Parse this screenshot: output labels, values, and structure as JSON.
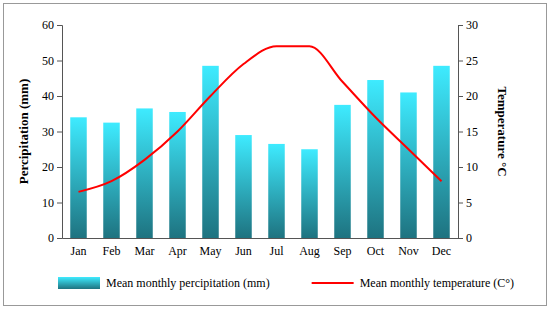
{
  "chart_data": {
    "type": "bar",
    "categories": [
      "Jan",
      "Feb",
      "Mar",
      "Apr",
      "May",
      "Jun",
      "Jul",
      "Aug",
      "Sep",
      "Oct",
      "Nov",
      "Dec"
    ],
    "series": [
      {
        "name": "Mean monthly percipitation (mm)",
        "type": "bar",
        "color": "#2a9fb0",
        "values": [
          34,
          32.5,
          36.5,
          35.5,
          48.5,
          29,
          26.5,
          25,
          37.5,
          44.5,
          41,
          48.5
        ]
      },
      {
        "name": "Mean monthly temperature (C°)",
        "type": "line",
        "axis": "y2",
        "color": "#ff0000",
        "values": [
          6.5,
          8,
          11,
          15,
          20,
          24.5,
          27,
          27,
          22,
          17,
          12.5,
          8
        ]
      }
    ],
    "y_label": "Percipitation (mm)",
    "y2_label": "Temperature °C",
    "ylim": [
      0,
      60
    ],
    "yticks": [
      0,
      10,
      20,
      30,
      40,
      50,
      60
    ],
    "y2lim": [
      0,
      30
    ],
    "y2ticks": [
      0,
      5,
      10,
      15,
      20,
      25,
      30
    ],
    "grid": false,
    "legend": "bottom"
  }
}
